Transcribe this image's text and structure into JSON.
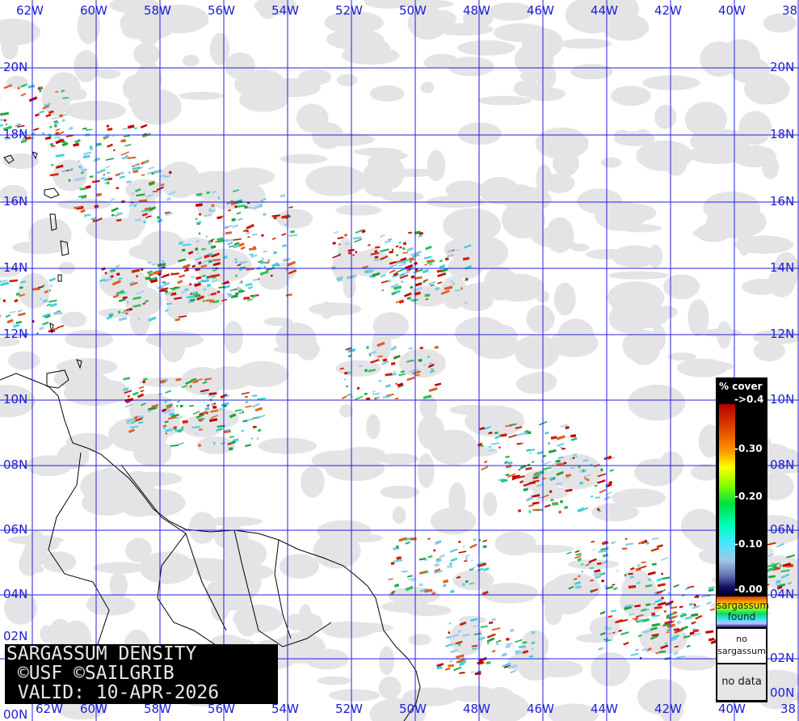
{
  "map": {
    "longitude_labels": [
      "62W",
      "60W",
      "58W",
      "56W",
      "54W",
      "52W",
      "50W",
      "48W",
      "46W",
      "44W",
      "42W",
      "40W",
      "38"
    ],
    "latitude_labels": [
      "20N",
      "18N",
      "16N",
      "14N",
      "12N",
      "10N",
      "08N",
      "06N",
      "04N",
      "02N",
      "00N"
    ],
    "grid_color": "#2020e0",
    "cloud_color": "#e4e4e6",
    "coast_color": "#000000"
  },
  "title": {
    "line1": "SARGASSUM DENSITY",
    "line2": " ©USF ©SAILGRIB",
    "line3": " VALID: 10-APR-2026"
  },
  "legend": {
    "header": "% cover",
    "ticks": [
      "->0.4",
      "-0.30",
      "-0.20",
      "-0.10",
      "-0.00"
    ],
    "found_line1": "sargassum",
    "found_line2": "found",
    "no_sargassum_line1": "no",
    "no_sargassum_line2": "sargassum",
    "no_data": "no data"
  }
}
